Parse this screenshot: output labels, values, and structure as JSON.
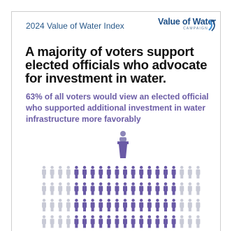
{
  "header": {
    "index_title": "2024 Value of Water Index",
    "logo_main": "Value of Water",
    "logo_sub": "CAMPAIGN"
  },
  "headline": "A majority of voters support elected officials who advocate for investment in water.",
  "subhead": "63% of all voters would view an elected official who supported additional investment in water infrastructure more favorably",
  "icon_grid": {
    "favorable_share_percent": 63,
    "colors": {
      "highlight": "#6a5aa6",
      "neutral": "#c8cad6"
    }
  },
  "icons": {
    "podium": "podium-speaker-icon",
    "person": "person-icon",
    "logo_mark": "water-waves-icon"
  }
}
